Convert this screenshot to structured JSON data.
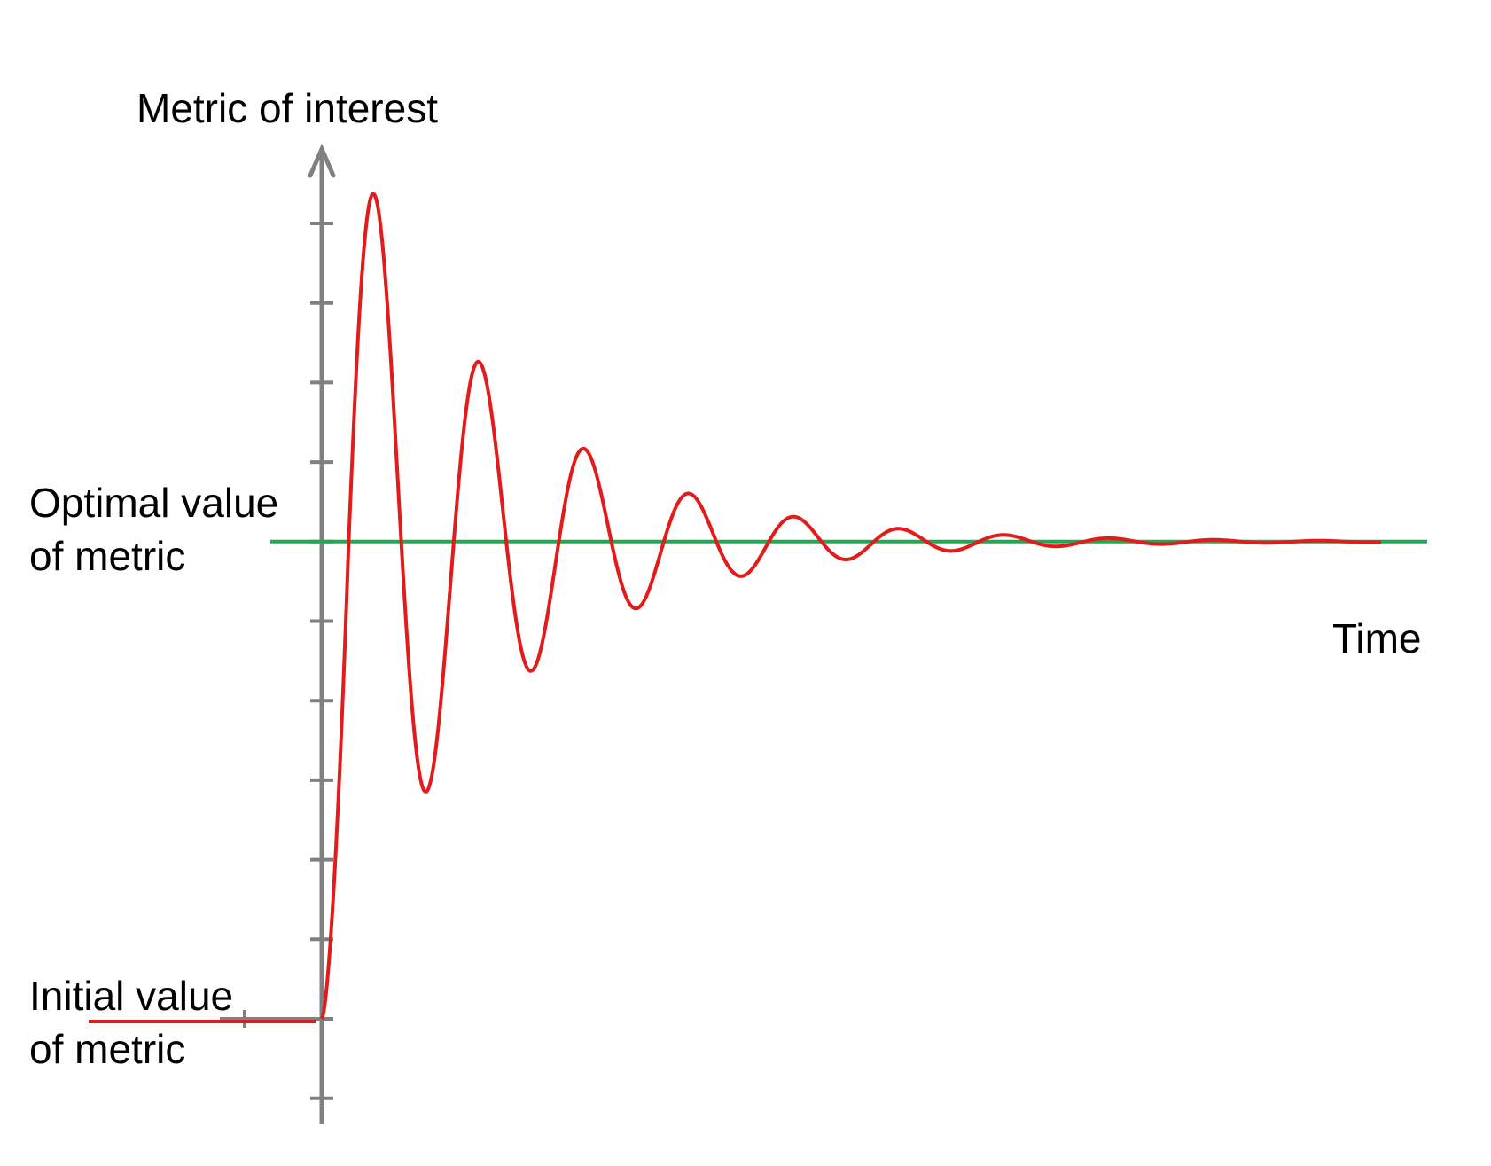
{
  "diagram": {
    "y_axis_label": "Metric of interest",
    "x_axis_label": "Time",
    "optimal_label": {
      "line1": "Optimal value",
      "line2": "of metric"
    },
    "initial_label": {
      "line1": "Initial value",
      "line2": "of metric"
    },
    "response": {
      "description_type": "damped oscillation",
      "start_value": 0,
      "target_value": 6,
      "peaks": [
        {
          "cycle": 1,
          "max": 10.35,
          "min": 2.9
        },
        {
          "cycle": 2,
          "max": 8.25,
          "min": 4.45
        },
        {
          "cycle": 3,
          "max": 7.15,
          "min": 5.15
        },
        {
          "cycle": 4,
          "max": 6.55,
          "min": 5.6
        },
        {
          "cycle": 5,
          "max": 6.3,
          "min": 5.8
        }
      ]
    },
    "y_axis_ticks": [
      -1,
      0,
      1,
      2,
      3,
      4,
      5,
      6,
      7,
      8,
      9,
      10
    ],
    "colors": {
      "axis": "#808080",
      "response": "#e31b1b",
      "optimal_line": "#1faa4f",
      "initial_line": "#e31b1b",
      "text": "#000000"
    }
  }
}
